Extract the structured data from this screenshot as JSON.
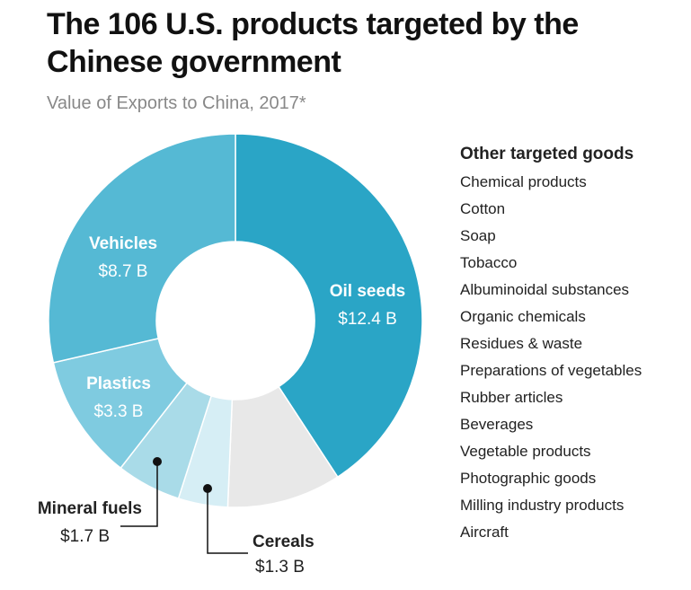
{
  "title": "The 106 U.S. products targeted by the Chinese government",
  "subtitle": "Value of Exports to China, 2017*",
  "other_goods": {
    "title": "Other targeted goods",
    "items": [
      "Chemical products",
      "Cotton",
      "Soap",
      "Tobacco",
      "Albuminoidal substances",
      "Organic chemicals",
      "Residues & waste",
      "Preparations of vegetables",
      "Rubber articles",
      "Beverages",
      "Vegetable products",
      "Photographic goods",
      "Milling industry products",
      "Aircraft"
    ]
  },
  "chart_data": {
    "type": "pie",
    "donut": true,
    "unit": "B",
    "start": "top, clockwise",
    "slices": [
      {
        "name": "Oil seeds",
        "label": "$12.4 B",
        "value": 12.4,
        "color": "#2aa5c6",
        "label_color": "#ffffff"
      },
      {
        "name": "Other targeted goods",
        "label": "",
        "value": 3.0,
        "color": "#e8e8e8"
      },
      {
        "name": "Cereals",
        "label": "$1.3 B",
        "value": 1.3,
        "color": "#d6eef5",
        "label_color": "#222222"
      },
      {
        "name": "Mineral fuels",
        "label": "$1.7 B",
        "value": 1.7,
        "color": "#a9dbe8",
        "label_color": "#222222"
      },
      {
        "name": "Plastics",
        "label": "$3.3 B",
        "value": 3.3,
        "color": "#7fcbe0",
        "label_color": "#ffffff"
      },
      {
        "name": "Vehicles",
        "label": "$8.7 B",
        "value": 8.7,
        "color": "#55b9d4",
        "label_color": "#ffffff"
      }
    ]
  }
}
